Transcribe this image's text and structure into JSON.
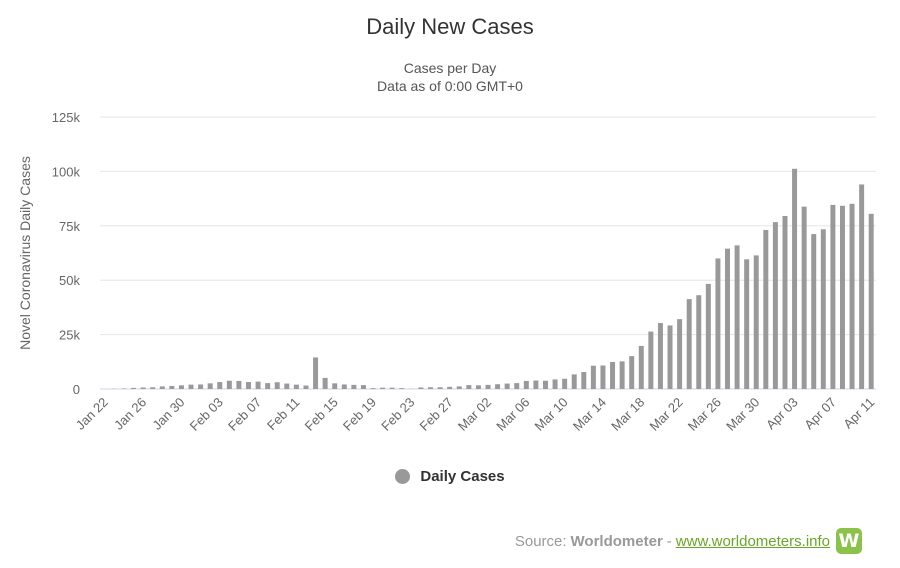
{
  "chart_data": {
    "type": "bar",
    "title": "Daily New Cases",
    "subtitle_lines": [
      "Cases per Day",
      "Data as of 0:00 GMT+0"
    ],
    "ylabel": "Novel Coronavirus Daily Cases",
    "xlabel": "",
    "ylim": [
      0,
      125000
    ],
    "yticks": [
      0,
      25000,
      50000,
      75000,
      100000,
      125000
    ],
    "ytick_labels": [
      "0",
      "25k",
      "50k",
      "75k",
      "100k",
      "125k"
    ],
    "grid": true,
    "legend_position": "bottom-center",
    "bar_color": "#999999",
    "categories": [
      "Jan 22",
      "Jan 23",
      "Jan 24",
      "Jan 25",
      "Jan 26",
      "Jan 27",
      "Jan 28",
      "Jan 29",
      "Jan 30",
      "Jan 31",
      "Feb 01",
      "Feb 02",
      "Feb 03",
      "Feb 04",
      "Feb 05",
      "Feb 06",
      "Feb 07",
      "Feb 08",
      "Feb 09",
      "Feb 10",
      "Feb 11",
      "Feb 12",
      "Feb 13",
      "Feb 14",
      "Feb 15",
      "Feb 16",
      "Feb 17",
      "Feb 18",
      "Feb 19",
      "Feb 20",
      "Feb 21",
      "Feb 22",
      "Feb 23",
      "Feb 24",
      "Feb 25",
      "Feb 26",
      "Feb 27",
      "Feb 28",
      "Feb 29",
      "Mar 01",
      "Mar 02",
      "Mar 03",
      "Mar 04",
      "Mar 05",
      "Mar 06",
      "Mar 07",
      "Mar 08",
      "Mar 09",
      "Mar 10",
      "Mar 11",
      "Mar 12",
      "Mar 13",
      "Mar 14",
      "Mar 15",
      "Mar 16",
      "Mar 17",
      "Mar 18",
      "Mar 19",
      "Mar 20",
      "Mar 21",
      "Mar 22",
      "Mar 23",
      "Mar 24",
      "Mar 25",
      "Mar 26",
      "Mar 27",
      "Mar 28",
      "Mar 29",
      "Mar 30",
      "Mar 31",
      "Apr 01",
      "Apr 02",
      "Apr 03",
      "Apr 04",
      "Apr 05",
      "Apr 06",
      "Apr 07",
      "Apr 08",
      "Apr 09",
      "Apr 10",
      "Apr 11"
    ],
    "tick_labels": [
      "Jan 22",
      "Jan 26",
      "Jan 30",
      "Feb 03",
      "Feb 07",
      "Feb 11",
      "Feb 15",
      "Feb 19",
      "Feb 23",
      "Feb 27",
      "Mar 02",
      "Mar 06",
      "Mar 10",
      "Mar 14",
      "Mar 18",
      "Mar 22",
      "Mar 26",
      "Mar 30",
      "Apr 03",
      "Apr 07",
      "Apr 11"
    ],
    "series": [
      {
        "name": "Daily Cases",
        "values": [
          0,
          100,
          250,
          500,
          700,
          800,
          1200,
          1400,
          1700,
          2000,
          2100,
          2600,
          3200,
          3800,
          3700,
          3200,
          3400,
          2700,
          3100,
          2500,
          2000,
          1600,
          14500,
          5100,
          2600,
          2100,
          1900,
          1800,
          400,
          600,
          600,
          400,
          100,
          700,
          800,
          800,
          1000,
          1200,
          1800,
          1700,
          1900,
          2200,
          2500,
          2700,
          3700,
          3900,
          3800,
          4400,
          4700,
          6700,
          7800,
          10700,
          10800,
          12400,
          12700,
          15100,
          19800,
          26400,
          30300,
          29200,
          32100,
          41300,
          43100,
          48300,
          60000,
          64500,
          66000,
          59600,
          61400,
          73100,
          76700,
          79500,
          101200,
          83800,
          71200,
          73400,
          84600,
          84200,
          85100,
          94000,
          80500
        ]
      }
    ]
  },
  "legend": {
    "label": "Daily Cases"
  },
  "footer": {
    "source_label": "Source:",
    "source_name": "Worldometer",
    "separator": "-",
    "link_text": "www.worldometers.info",
    "logo_letter": "W"
  }
}
